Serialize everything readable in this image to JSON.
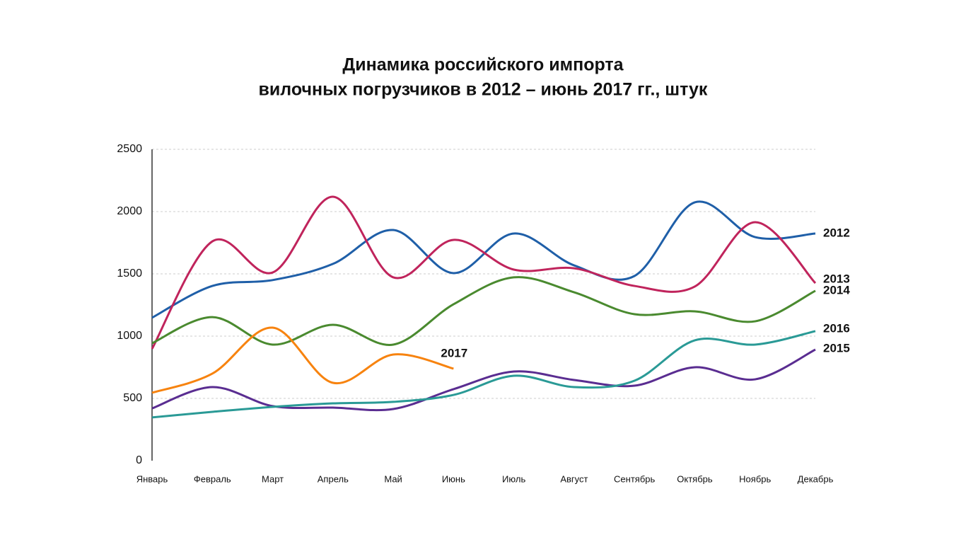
{
  "chart_data": {
    "type": "line",
    "title": [
      "Динамика российского импорта",
      "вилочных погрузчиков в 2012 – июнь 2017 гг., штук"
    ],
    "categories": [
      "Январь",
      "Февраль",
      "Март",
      "Апрель",
      "Май",
      "Июнь",
      "Июль",
      "Август",
      "Сентябрь",
      "Октябрь",
      "Ноябрь",
      "Декабрь"
    ],
    "series": [
      {
        "name": "2012",
        "color": "#1f5fa8",
        "values": [
          1148,
          1403,
          1450,
          1580,
          1852,
          1506,
          1824,
          1568,
          1483,
          2074,
          1795,
          1824
        ]
      },
      {
        "name": "2013",
        "color": "#c0245c",
        "values": [
          898,
          1761,
          1511,
          2119,
          1472,
          1773,
          1534,
          1545,
          1403,
          1398,
          1915,
          1426
        ]
      },
      {
        "name": "2014",
        "color": "#4a8a2f",
        "values": [
          943,
          1153,
          932,
          1091,
          932,
          1256,
          1472,
          1352,
          1176,
          1199,
          1119,
          1364
        ]
      },
      {
        "name": "2015",
        "color": "#5a2d91",
        "values": [
          420,
          591,
          438,
          426,
          415,
          574,
          716,
          648,
          602,
          750,
          653,
          892
        ]
      },
      {
        "name": "2016",
        "color": "#2a9a96",
        "values": [
          347,
          392,
          432,
          460,
          472,
          528,
          682,
          591,
          642,
          966,
          932,
          1040
        ]
      },
      {
        "name": "2017",
        "color": "#f7830f",
        "values": [
          545,
          699,
          1068,
          625,
          852,
          739,
          null,
          null,
          null,
          null,
          null,
          null
        ]
      }
    ],
    "ylim": [
      0,
      2500
    ],
    "yticks": [
      0,
      500,
      1000,
      1500,
      2000,
      2500
    ],
    "grid": true
  }
}
